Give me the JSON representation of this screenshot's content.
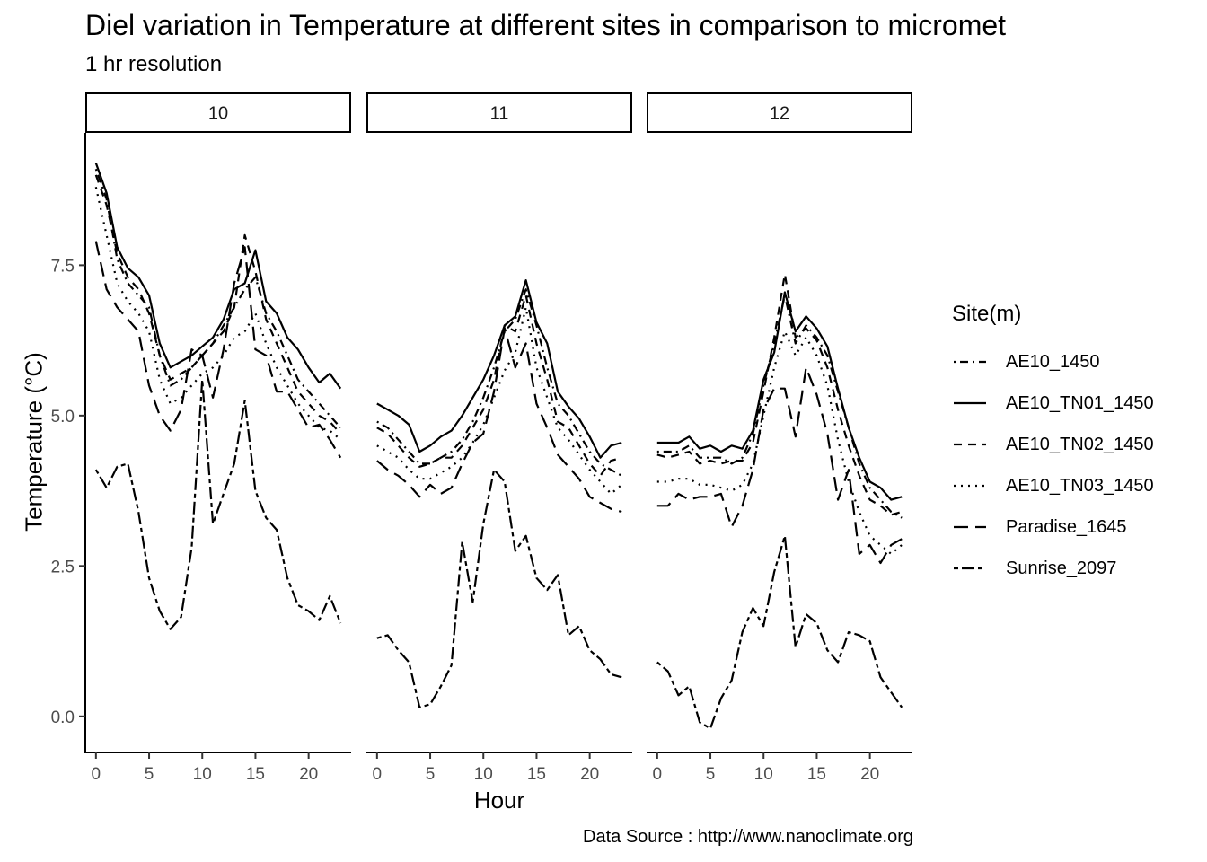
{
  "chart_data": {
    "type": "line",
    "title": "Diel variation in Temperature at different sites in comparison to micromet",
    "subtitle": "1 hr resolution",
    "xlabel": "Hour",
    "ylabel": "Temperature (°C)",
    "caption": "Data Source : http://www.nanoclimate.org",
    "legend_title": "Site(m)",
    "legend_position": "right",
    "grid": false,
    "xlim": [
      -1,
      24
    ],
    "ylim": [
      -0.6,
      9.7
    ],
    "x_ticks": [
      0,
      5,
      10,
      15,
      20
    ],
    "y_ticks": [
      0.0,
      2.5,
      5.0,
      7.5
    ],
    "y_tick_labels": [
      "0.0",
      "2.5",
      "5.0",
      "7.5"
    ],
    "panels": [
      "10",
      "11",
      "12"
    ],
    "series": [
      {
        "name": "AE10_1450",
        "dash": "dotdash",
        "panels": [
          [
            9.1,
            8.6,
            7.6,
            7.2,
            7.0,
            6.8,
            6.0,
            5.5,
            5.6,
            5.8,
            6.0,
            6.2,
            6.5,
            6.8,
            7.1,
            7.3,
            6.7,
            6.4,
            6.0,
            5.6,
            5.4,
            5.2,
            5.0,
            4.8
          ],
          [
            4.9,
            4.8,
            4.6,
            4.4,
            4.2,
            4.2,
            4.3,
            4.4,
            4.6,
            4.9,
            5.3,
            5.8,
            6.4,
            6.6,
            7.1,
            6.5,
            5.8,
            5.2,
            5.0,
            4.7,
            4.4,
            4.2,
            4.1,
            4.0
          ],
          [
            4.4,
            4.4,
            4.4,
            4.5,
            4.3,
            4.3,
            4.3,
            4.2,
            4.3,
            4.7,
            5.5,
            6.2,
            7.0,
            6.2,
            6.5,
            6.3,
            6.0,
            5.4,
            4.8,
            4.2,
            3.8,
            3.6,
            3.4,
            3.3
          ]
        ]
      },
      {
        "name": "AE10_TN01_1450",
        "dash": "solid",
        "panels": [
          [
            9.2,
            8.7,
            7.8,
            7.45,
            7.3,
            7.0,
            6.2,
            5.8,
            5.9,
            6.0,
            6.15,
            6.3,
            6.6,
            7.1,
            7.2,
            7.75,
            6.9,
            6.7,
            6.3,
            6.1,
            5.8,
            5.55,
            5.7,
            5.45
          ],
          [
            5.2,
            5.1,
            5.0,
            4.85,
            4.4,
            4.5,
            4.65,
            4.75,
            5.0,
            5.3,
            5.6,
            6.0,
            6.5,
            6.65,
            7.25,
            6.55,
            6.2,
            5.4,
            5.15,
            4.95,
            4.65,
            4.3,
            4.5,
            4.55
          ],
          [
            4.55,
            4.55,
            4.55,
            4.65,
            4.45,
            4.5,
            4.4,
            4.5,
            4.45,
            4.75,
            5.6,
            6.05,
            7.05,
            6.4,
            6.65,
            6.45,
            6.15,
            5.45,
            4.8,
            4.3,
            3.9,
            3.8,
            3.6,
            3.65
          ]
        ]
      },
      {
        "name": "AE10_TN02_1450",
        "dash": "dashed",
        "panels": [
          [
            9.0,
            8.5,
            7.7,
            7.3,
            7.1,
            6.7,
            6.0,
            5.6,
            5.7,
            5.8,
            6.0,
            6.2,
            6.4,
            6.8,
            8.0,
            7.4,
            6.6,
            6.2,
            5.8,
            5.4,
            5.2,
            5.0,
            4.9,
            4.7
          ],
          [
            4.8,
            4.7,
            4.5,
            4.3,
            4.15,
            4.2,
            4.3,
            4.3,
            4.5,
            4.8,
            5.1,
            5.6,
            6.5,
            6.4,
            7.0,
            6.2,
            5.6,
            4.9,
            4.8,
            4.5,
            4.2,
            4.0,
            4.25,
            4.3
          ],
          [
            4.35,
            4.3,
            4.35,
            4.4,
            4.2,
            4.25,
            4.2,
            4.25,
            4.25,
            4.55,
            5.4,
            6.3,
            7.35,
            6.3,
            6.45,
            6.25,
            5.8,
            5.1,
            4.5,
            4.0,
            3.6,
            3.5,
            3.35,
            3.4
          ]
        ]
      },
      {
        "name": "AE10_TN03_1450",
        "dash": "dotted",
        "panels": [
          [
            8.8,
            8.0,
            7.2,
            6.9,
            6.7,
            6.4,
            5.6,
            5.2,
            5.3,
            5.5,
            5.7,
            5.8,
            6.0,
            6.3,
            6.4,
            6.7,
            6.2,
            5.8,
            5.5,
            5.2,
            5.0,
            4.8,
            4.75,
            4.6
          ],
          [
            4.5,
            4.4,
            4.3,
            4.1,
            3.95,
            3.95,
            4.05,
            4.15,
            4.3,
            4.55,
            4.85,
            5.3,
            5.75,
            6.05,
            6.8,
            5.8,
            5.3,
            4.8,
            4.6,
            4.35,
            4.1,
            3.9,
            3.7,
            3.85
          ],
          [
            3.9,
            3.9,
            3.95,
            3.95,
            3.85,
            3.85,
            3.8,
            3.75,
            3.85,
            4.2,
            5.0,
            5.8,
            6.4,
            6.0,
            6.3,
            6.0,
            5.5,
            4.6,
            3.9,
            3.4,
            3.0,
            2.85,
            2.7,
            2.85
          ]
        ]
      },
      {
        "name": "Paradise_1645",
        "dash": "longdash",
        "panels": [
          [
            7.9,
            7.1,
            6.8,
            6.6,
            6.4,
            5.5,
            5.0,
            4.75,
            5.1,
            6.1,
            6.0,
            5.3,
            6.1,
            7.2,
            7.8,
            6.1,
            6.0,
            5.4,
            5.4,
            5.1,
            4.8,
            4.85,
            4.6,
            4.3
          ],
          [
            4.25,
            4.1,
            4.0,
            3.85,
            3.65,
            3.85,
            3.7,
            3.8,
            4.2,
            4.55,
            4.7,
            5.4,
            6.45,
            5.8,
            6.2,
            5.2,
            4.8,
            4.35,
            4.15,
            3.95,
            3.65,
            3.55,
            3.45,
            3.4
          ],
          [
            3.5,
            3.5,
            3.7,
            3.6,
            3.65,
            3.65,
            3.7,
            3.15,
            3.5,
            4.1,
            5.1,
            5.45,
            5.45,
            4.65,
            5.8,
            5.35,
            4.7,
            3.6,
            4.1,
            2.7,
            2.85,
            2.55,
            2.85,
            2.95
          ]
        ]
      },
      {
        "name": "Sunrise_2097",
        "dash": "twodash",
        "panels": [
          [
            4.1,
            3.8,
            4.15,
            4.2,
            3.4,
            2.3,
            1.75,
            1.45,
            1.65,
            2.8,
            5.6,
            3.2,
            3.7,
            4.2,
            5.25,
            3.75,
            3.3,
            3.1,
            2.3,
            1.85,
            1.75,
            1.6,
            2.0,
            1.55
          ],
          [
            1.3,
            1.35,
            1.1,
            0.9,
            0.15,
            0.2,
            0.5,
            0.85,
            2.9,
            1.9,
            3.2,
            4.1,
            3.9,
            2.75,
            3.0,
            2.3,
            2.1,
            2.35,
            1.35,
            1.5,
            1.1,
            0.95,
            0.7,
            0.65
          ],
          [
            0.9,
            0.75,
            0.35,
            0.5,
            -0.1,
            -0.2,
            0.3,
            0.6,
            1.4,
            1.8,
            1.5,
            2.4,
            3.0,
            1.15,
            1.7,
            1.55,
            1.1,
            0.9,
            1.4,
            1.35,
            1.25,
            0.65,
            0.4,
            0.15
          ]
        ]
      }
    ]
  }
}
